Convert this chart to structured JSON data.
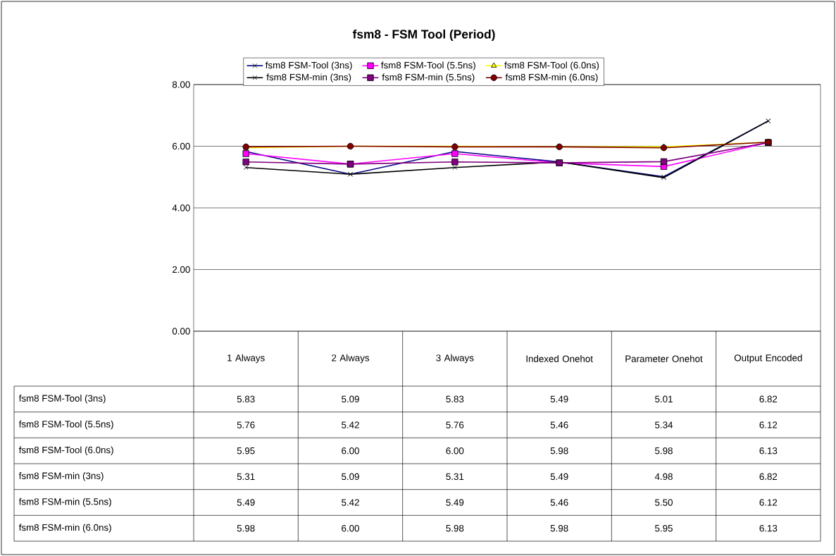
{
  "chart_data": {
    "type": "line",
    "title": "fsm8 - FSM Tool (Period)",
    "categories": [
      "1 Always",
      "2 Always",
      "3 Always",
      "Indexed Onehot",
      "Parameter Onehot",
      "Output Encoded"
    ],
    "series": [
      {
        "name": "fsm8 FSM-Tool (3ns)",
        "color": "#000080",
        "marker": "cross",
        "values": [
          5.83,
          5.09,
          5.83,
          5.49,
          5.01,
          6.82
        ],
        "value_labels": [
          "5.83",
          "5.09",
          "5.83",
          "5.49",
          "5.01",
          "6.82"
        ]
      },
      {
        "name": "fsm8 FSM-Tool (5.5ns)",
        "color": "#ff00ff",
        "marker": "square",
        "values": [
          5.76,
          5.42,
          5.76,
          5.46,
          5.34,
          6.12
        ],
        "value_labels": [
          "5.76",
          "5.42",
          "5.76",
          "5.46",
          "5.34",
          "6.12"
        ]
      },
      {
        "name": "fsm8 FSM-Tool (6.0ns)",
        "color": "#ffff00",
        "marker": "triangle",
        "values": [
          5.95,
          6.0,
          6.0,
          5.98,
          5.98,
          6.13
        ],
        "value_labels": [
          "5.95",
          "6.00",
          "6.00",
          "5.98",
          "5.98",
          "6.13"
        ]
      },
      {
        "name": "fsm8 FSM-min (3ns)",
        "color": "#000000",
        "marker": "cross",
        "values": [
          5.31,
          5.09,
          5.31,
          5.49,
          4.98,
          6.82
        ],
        "value_labels": [
          "5.31",
          "5.09",
          "5.31",
          "5.49",
          "4.98",
          "6.82"
        ]
      },
      {
        "name": "fsm8 FSM-min (5.5ns)",
        "color": "#800080",
        "marker": "square",
        "values": [
          5.49,
          5.42,
          5.49,
          5.46,
          5.5,
          6.12
        ],
        "value_labels": [
          "5.49",
          "5.42",
          "5.49",
          "5.46",
          "5.50",
          "6.12"
        ]
      },
      {
        "name": "fsm8 FSM-min (6.0ns)",
        "color": "#800000",
        "marker": "circle",
        "values": [
          5.98,
          6.0,
          5.98,
          5.98,
          5.95,
          6.13
        ],
        "value_labels": [
          "5.98",
          "6.00",
          "5.98",
          "5.98",
          "5.95",
          "6.13"
        ]
      }
    ],
    "ylim": [
      0,
      8
    ],
    "yticks": [
      {
        "value": 0,
        "label": "0.00"
      },
      {
        "value": 2,
        "label": "2.00"
      },
      {
        "value": 4,
        "label": "4.00"
      },
      {
        "value": 6,
        "label": "6.00"
      },
      {
        "value": 8,
        "label": "8.00"
      }
    ],
    "grid": "y",
    "legend": "top",
    "line_style": "solid"
  }
}
